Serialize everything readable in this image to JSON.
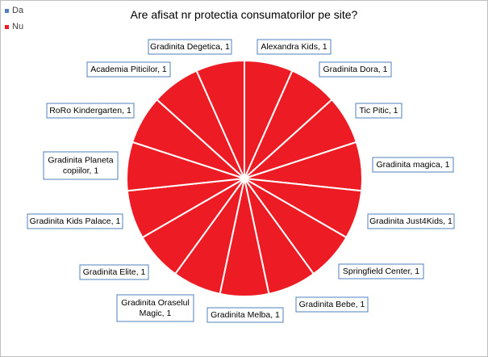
{
  "chart_data": {
    "type": "pie",
    "title": "Are afisat nr protectia consumatorilor pe site?",
    "legend": [
      {
        "name": "Da",
        "color": "#4f81bd"
      },
      {
        "name": "Nu",
        "color": "#ed1c24"
      }
    ],
    "legend_position": "top-left",
    "slice_color": "#ed1c24",
    "slice_border_color": "#ffffff",
    "label_border_color": "#4f81bd",
    "slices": [
      {
        "label": "Alexandra Kids",
        "value": 1,
        "text": [
          "Alexandra Kids, 1"
        ]
      },
      {
        "label": "Gradinita Dora",
        "value": 1,
        "text": [
          "Gradinita Dora, 1"
        ]
      },
      {
        "label": "Tic Pitic",
        "value": 1,
        "text": [
          "Tic Pitic, 1"
        ]
      },
      {
        "label": "Gradinita magica",
        "value": 1,
        "text": [
          "Gradinita magica, 1"
        ]
      },
      {
        "label": "Gradinita Just4Kids",
        "value": 1,
        "text": [
          "Gradinita Just4Kids, 1"
        ]
      },
      {
        "label": "Springfield Center",
        "value": 1,
        "text": [
          "Springfield Center, 1"
        ]
      },
      {
        "label": "Gradinita Bebe",
        "value": 1,
        "text": [
          "Gradinita Bebe, 1"
        ]
      },
      {
        "label": "Gradinita Melba",
        "value": 1,
        "text": [
          "Gradinita Melba, 1"
        ]
      },
      {
        "label": "Gradinita Oraselul Magic",
        "value": 1,
        "text": [
          "Gradinita Oraselul",
          "Magic, 1"
        ]
      },
      {
        "label": "Gradinita Elite",
        "value": 1,
        "text": [
          "Gradinita Elite, 1"
        ]
      },
      {
        "label": "Gradinita Kids Palace",
        "value": 1,
        "text": [
          "Gradinita Kids Palace, 1"
        ]
      },
      {
        "label": "Gradinita Planeta copiilor",
        "value": 1,
        "text": [
          "Gradinita Planeta",
          "copiilor, 1"
        ]
      },
      {
        "label": "RoRo Kindergarten",
        "value": 1,
        "text": [
          "RoRo Kindergarten, 1"
        ]
      },
      {
        "label": "Academia Piticilor",
        "value": 1,
        "text": [
          "Academia Piticilor, 1"
        ]
      },
      {
        "label": "Gradinita Degetica",
        "value": 1,
        "text": [
          "Gradinita Degetica, 1"
        ]
      }
    ]
  }
}
